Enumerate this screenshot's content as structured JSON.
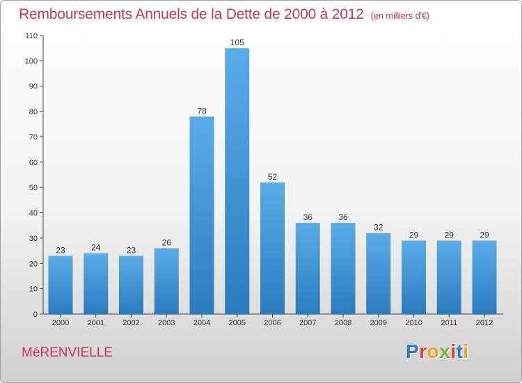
{
  "header": {
    "title": "Remboursements Annuels de la Dette de 2000 à 2012",
    "unit": "(en milliers d'€)"
  },
  "footer": {
    "commune": "MéRENVIELLE",
    "logo_text": "Proxiti"
  },
  "colors": {
    "title": "#c8385a",
    "bar_top": "#5aade6",
    "bar_bottom": "#2a7cc0",
    "logo_letters": [
      "#2f7fc8",
      "#e23b3b",
      "#f0a319",
      "#7ab52a",
      "#e23b3b",
      "#2f7fc8",
      "#f0a319"
    ]
  },
  "chart_data": {
    "type": "bar",
    "title": "Remboursements Annuels de la Dette de 2000 à 2012",
    "subtitle": "(en milliers d'€)",
    "categories": [
      "2000",
      "2001",
      "2002",
      "2003",
      "2004",
      "2005",
      "2006",
      "2007",
      "2008",
      "2009",
      "2010",
      "2011",
      "2012"
    ],
    "values": [
      23,
      24,
      23,
      26,
      78,
      105,
      52,
      36,
      36,
      32,
      29,
      29,
      29
    ],
    "ylim": [
      0,
      110
    ],
    "yticks": [
      0,
      10,
      20,
      30,
      40,
      50,
      60,
      70,
      80,
      90,
      100,
      110
    ],
    "grid": false,
    "data_labels": true
  }
}
